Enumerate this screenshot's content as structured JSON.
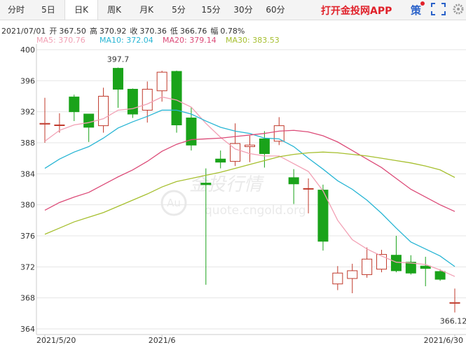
{
  "header": {
    "tabs": [
      "分时",
      "5日",
      "日K",
      "周K",
      "月K",
      "5分",
      "15分",
      "30分",
      "60分"
    ],
    "app_link": "打开金投网APP",
    "strategy": "策"
  },
  "quote": {
    "date": "2021/07/01",
    "items": [
      {
        "label": "开",
        "value": "367.50"
      },
      {
        "label": "高",
        "value": "370.92"
      },
      {
        "label": "收",
        "value": "370.36"
      },
      {
        "label": "低",
        "value": "366.76"
      },
      {
        "label": "幅",
        "value": "0.78%"
      }
    ]
  },
  "watermark": {
    "brand": "金投行情",
    "logo": "Au",
    "site": "quote.cngold.org"
  },
  "chart_data": {
    "type": "candlestick",
    "categories": [
      "2021/5/20",
      null,
      null,
      null,
      null,
      null,
      null,
      null,
      "2021/6",
      null,
      null,
      null,
      null,
      null,
      null,
      null,
      null,
      null,
      null,
      null,
      null,
      null,
      null,
      null,
      null,
      null,
      null,
      null,
      "2021/6/30"
    ],
    "open": [
      390.4,
      390.3,
      393.9,
      391.7,
      390.2,
      397.6,
      394.9,
      392.2,
      394.7,
      397.2,
      391.2,
      382.8,
      385.9,
      385.6,
      387.5,
      388.5,
      388.2,
      383.5,
      382.1,
      381.9,
      369.8,
      370.5,
      371.0,
      371.7,
      373.5,
      372.6,
      372.1,
      371.4,
      367.3
    ],
    "high": [
      393.8,
      391.8,
      394.2,
      391.7,
      395.1,
      397.7,
      395.0,
      395.9,
      397.28,
      397.3,
      392.6,
      384.7,
      387.0,
      390.5,
      388.9,
      389.5,
      391.3,
      384.6,
      383.4,
      382.6,
      372.1,
      372.4,
      374.5,
      374.2,
      376.0,
      373.5,
      373.3,
      371.7,
      369.2
    ],
    "low": [
      388.0,
      389.3,
      390.8,
      388.1,
      389.3,
      392.5,
      391.2,
      390.6,
      393.3,
      389.3,
      387.0,
      369.7,
      384.7,
      385.0,
      385.5,
      384.8,
      387.7,
      380.1,
      378.9,
      374.1,
      369.0,
      368.6,
      370.6,
      371.3,
      371.3,
      371.0,
      369.5,
      370.2,
      366.12
    ],
    "close": [
      390.5,
      390.3,
      392.0,
      390.0,
      394.0,
      394.9,
      391.7,
      394.9,
      397.1,
      390.3,
      387.7,
      382.6,
      385.5,
      387.9,
      387.7,
      386.6,
      390.2,
      382.7,
      382.1,
      375.3,
      371.2,
      371.5,
      373.0,
      373.6,
      371.5,
      371.2,
      371.8,
      370.4,
      367.4
    ],
    "up_color": "#c0392b",
    "down_color": "#1aa31a",
    "ylim": [
      364,
      400
    ],
    "yticks": [
      364,
      368,
      372,
      376,
      380,
      384,
      388,
      392,
      396,
      400
    ],
    "grid": true,
    "ma": [
      {
        "name": "MA5: 370.76",
        "color": "#f2a0b4",
        "values": [
          388.2,
          389.6,
          390.3,
          390.6,
          391.1,
          392.2,
          392.4,
          393.0,
          393.9,
          393.5,
          392.6,
          390.5,
          388.7,
          387.2,
          386.6,
          386.3,
          386.3,
          385.3,
          384.3,
          381.8,
          378.0,
          375.5,
          374.3,
          373.4,
          372.6,
          372.5,
          372.3,
          371.6,
          370.76
        ]
      },
      {
        "name": "MA10: 372.04",
        "color": "#27b5d4",
        "values": [
          384.7,
          385.9,
          386.8,
          387.5,
          388.6,
          389.9,
          390.7,
          391.4,
          392.2,
          392.2,
          391.7,
          390.8,
          390.0,
          389.5,
          389.2,
          388.6,
          388.5,
          387.5,
          386.0,
          384.6,
          383.1,
          382.0,
          380.6,
          378.9,
          377.0,
          375.2,
          374.3,
          373.4,
          372.04
        ]
      },
      {
        "name": "MA20: 379.14",
        "color": "#dc4b78",
        "values": [
          379.3,
          380.3,
          381.0,
          381.6,
          382.6,
          383.6,
          384.5,
          385.6,
          386.9,
          387.8,
          388.4,
          388.5,
          388.6,
          388.8,
          389.0,
          389.2,
          389.5,
          389.6,
          389.4,
          388.9,
          388.1,
          387.0,
          385.9,
          384.8,
          383.4,
          382.0,
          381.0,
          380.0,
          379.14
        ]
      },
      {
        "name": "MA30: 383.53",
        "color": "#a6bf2e",
        "values": [
          376.2,
          377.0,
          377.8,
          378.4,
          379.0,
          379.8,
          380.6,
          381.4,
          382.3,
          383.0,
          383.4,
          383.8,
          384.2,
          384.7,
          385.2,
          385.7,
          386.2,
          386.5,
          386.7,
          386.8,
          386.7,
          386.5,
          386.3,
          386.0,
          385.7,
          385.4,
          385.0,
          384.5,
          383.53
        ]
      }
    ]
  }
}
